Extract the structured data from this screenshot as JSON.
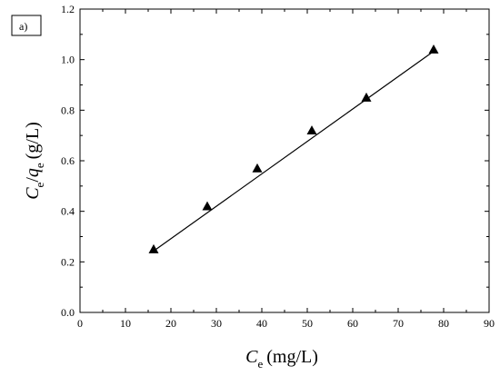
{
  "panel_label": "a)",
  "chart_data": {
    "type": "scatter",
    "series": [
      {
        "x": [
          16.2,
          28.0,
          39.0,
          51.0,
          63.0,
          77.8
        ],
        "y": [
          0.25,
          0.42,
          0.57,
          0.72,
          0.85,
          1.04
        ],
        "marker": "triangle",
        "color": "#000000"
      }
    ],
    "fit_line": {
      "x": [
        16.2,
        77.8
      ],
      "y": [
        0.243,
        1.033
      ],
      "color": "#000000"
    },
    "xlabel": {
      "symbol": "C",
      "subscript": "e",
      "unit": "(mg/L)"
    },
    "ylabel": {
      "symbol1": "C",
      "subscript1": "e",
      "slash": "/",
      "symbol2": "q",
      "subscript2": "e",
      "unit": "(g/L)"
    },
    "xlim": [
      0,
      90
    ],
    "ylim": [
      0.0,
      1.2
    ],
    "xticks": [
      "0",
      "10",
      "20",
      "30",
      "40",
      "50",
      "60",
      "70",
      "80",
      "90"
    ],
    "yticks": [
      "0.0",
      "0.2",
      "0.4",
      "0.6",
      "0.8",
      "1.0",
      "1.2"
    ],
    "grid": false
  }
}
